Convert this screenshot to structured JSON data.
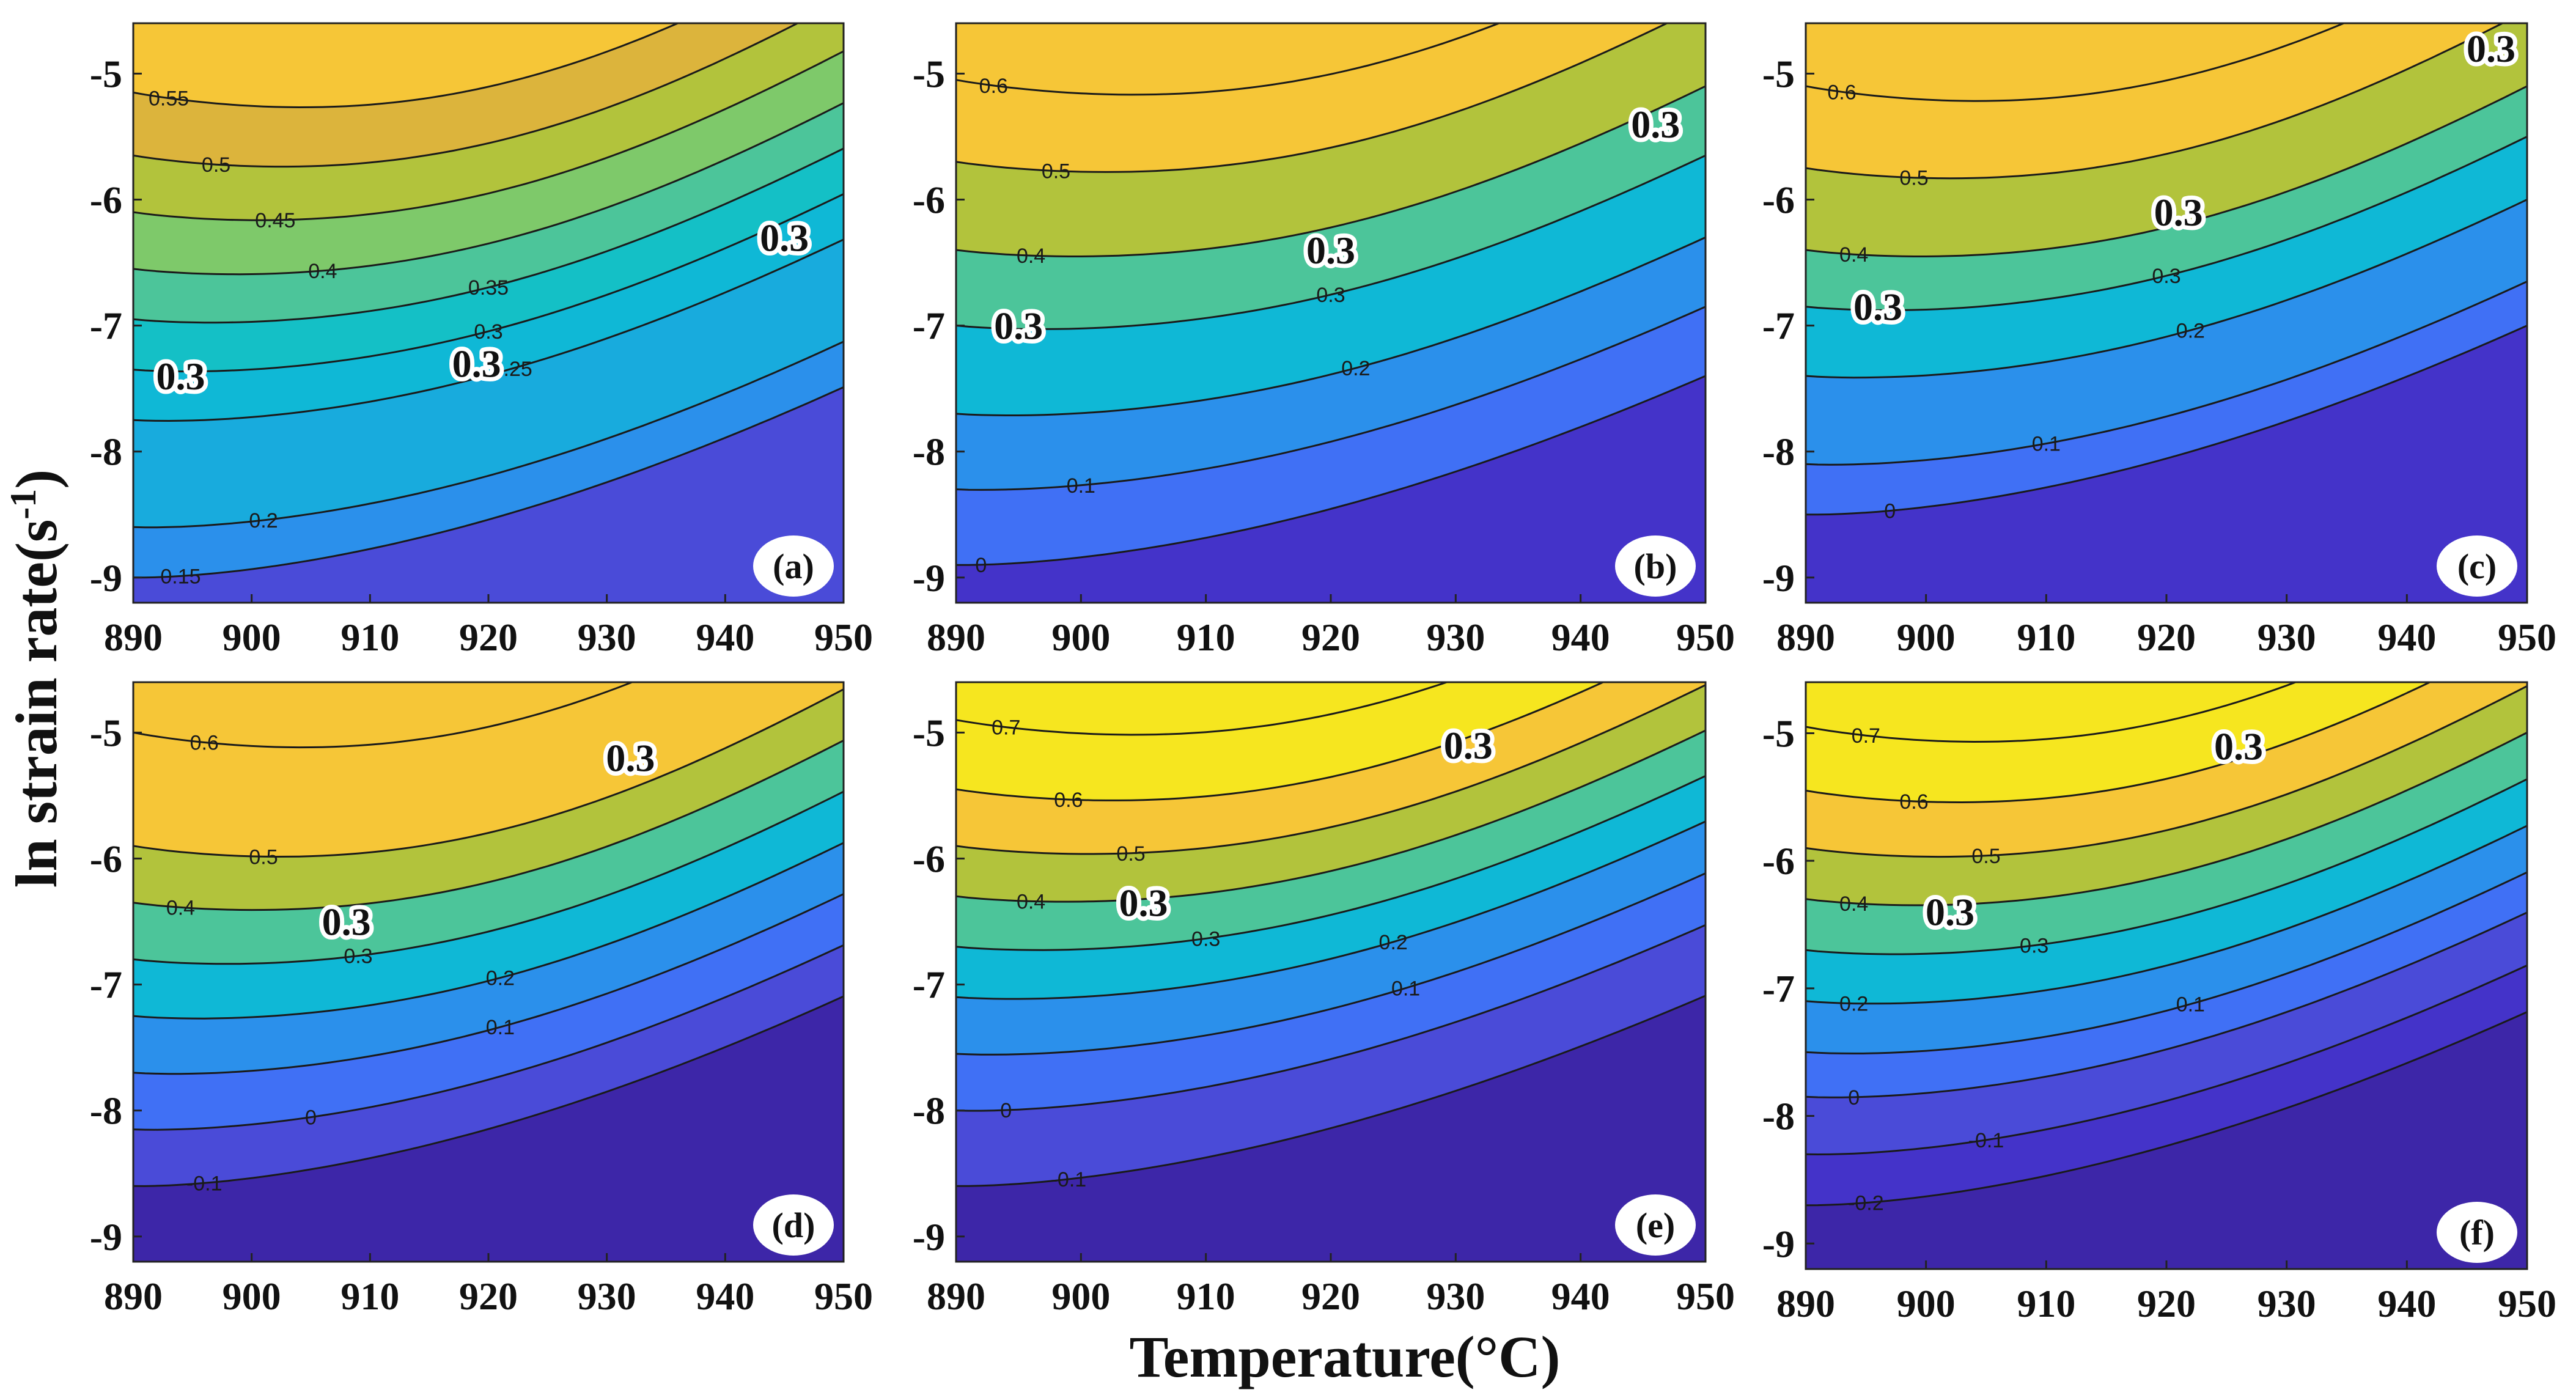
{
  "figure": {
    "ylabel": "ln strain rate(s",
    "ylabel_sup": "-1",
    "ylabel_close": ")",
    "xlabel": "Temperature(°C)"
  },
  "colors": {
    "levels": [
      -0.2,
      -0.1,
      0.0,
      0.1,
      0.2,
      0.25,
      0.3,
      0.35,
      0.4,
      0.45,
      0.5,
      0.55,
      0.6,
      0.7
    ],
    "fills": [
      "#3d26a8",
      "#4433c9",
      "#4a4bd8",
      "#4070f5",
      "#2b90eb",
      "#18abdd",
      "#0fb8d6",
      "#14c0c6",
      "#4cc59a",
      "#7ec96a",
      "#b2c33c",
      "#dcb43c",
      "#f6c637",
      "#f6e61f"
    ]
  },
  "chart_data": [
    {
      "type": "contour",
      "panel": "(a)",
      "xlim": [
        890,
        950
      ],
      "ylim": [
        -9.2,
        -4.6
      ],
      "xticks": [
        "890",
        "900",
        "910",
        "920",
        "930",
        "940",
        "950"
      ],
      "yticks": [
        "-5",
        "-6",
        "-7",
        "-8",
        "-9"
      ],
      "xlabel": "Temperature(°C)",
      "ylabel": "ln strain rate(s-1)",
      "contours": [
        {
          "level": 0.55,
          "y_start": -5.15,
          "slope": 0.0,
          "label": "0.55",
          "label_x": 893
        },
        {
          "level": 0.5,
          "y_start": -5.65,
          "slope": 0.0,
          "label": "0.5",
          "label_x": 897
        },
        {
          "level": 0.45,
          "y_start": -6.1,
          "slope": 0.0,
          "label": "0.45",
          "label_x": 902
        },
        {
          "level": 0.4,
          "y_start": -6.55,
          "slope": 0.0,
          "label": "0.4",
          "label_x": 906
        },
        {
          "level": 0.35,
          "y_start": -6.95,
          "slope": 0.0,
          "label": "0.35",
          "label_x": 920
        },
        {
          "level": 0.3,
          "y_start": -7.35,
          "slope": 0.0,
          "label": "0.3",
          "label_x": 920
        },
        {
          "level": 0.25,
          "y_start": -7.75,
          "slope": 0.0,
          "label": "0.25",
          "label_x": 922
        },
        {
          "level": 0.2,
          "y_start": -8.6,
          "slope": 0.0,
          "label": "0.2",
          "label_x": 901
        },
        {
          "level": 0.15,
          "y_start": -9.0,
          "slope": 0.0,
          "label": "0.15",
          "label_x": 894
        }
      ],
      "big_labels": [
        {
          "text": "0.3",
          "x": 894,
          "y": -7.4
        },
        {
          "text": "0.3",
          "x": 919,
          "y": -7.3
        },
        {
          "text": "0.3",
          "x": 945,
          "y": -6.3
        }
      ]
    },
    {
      "type": "contour",
      "panel": "(b)",
      "xlim": [
        890,
        950
      ],
      "ylim": [
        -9.2,
        -4.6
      ],
      "xticks": [
        "890",
        "900",
        "910",
        "920",
        "930",
        "940",
        "950"
      ],
      "yticks": [
        "-5",
        "-6",
        "-7",
        "-8",
        "-9"
      ],
      "xlabel": "Temperature(°C)",
      "ylabel": "ln strain rate(s-1)",
      "contours": [
        {
          "level": 0.6,
          "y_start": -5.05,
          "label": "0.6",
          "label_x": 893
        },
        {
          "level": 0.5,
          "y_start": -5.7,
          "label": "0.5",
          "label_x": 898
        },
        {
          "level": 0.4,
          "y_start": -6.4,
          "label": "0.4",
          "label_x": 896
        },
        {
          "level": 0.3,
          "y_start": -7.0,
          "label": "0.3",
          "label_x": 920
        },
        {
          "level": 0.2,
          "y_start": -7.7,
          "label": "0.2",
          "label_x": 922
        },
        {
          "level": 0.1,
          "y_start": -8.3,
          "label": "0.1",
          "label_x": 900
        },
        {
          "level": 0.0,
          "y_start": -8.9,
          "label": "0",
          "label_x": 892
        }
      ],
      "big_labels": [
        {
          "text": "0.3",
          "x": 895,
          "y": -7.0
        },
        {
          "text": "0.3",
          "x": 920,
          "y": -6.4
        },
        {
          "text": "0.3",
          "x": 946,
          "y": -5.4
        }
      ]
    },
    {
      "type": "contour",
      "panel": "(c)",
      "xlim": [
        890,
        950
      ],
      "ylim": [
        -9.2,
        -4.6
      ],
      "xticks": [
        "890",
        "900",
        "910",
        "920",
        "930",
        "940",
        "950"
      ],
      "yticks": [
        "-5",
        "-6",
        "-7",
        "-8",
        "-9"
      ],
      "xlabel": "Temperature(°C)",
      "ylabel": "ln strain rate(s-1)",
      "contours": [
        {
          "level": 0.6,
          "y_start": -5.1,
          "label": "0.6",
          "label_x": 893
        },
        {
          "level": 0.5,
          "y_start": -5.75,
          "label": "0.5",
          "label_x": 899
        },
        {
          "level": 0.4,
          "y_start": -6.4,
          "label": "0.4",
          "label_x": 894
        },
        {
          "level": 0.3,
          "y_start": -6.85,
          "label": "0.3",
          "label_x": 920
        },
        {
          "level": 0.2,
          "y_start": -7.4,
          "label": "0.2",
          "label_x": 922
        },
        {
          "level": 0.1,
          "y_start": -8.1,
          "label": "0.1",
          "label_x": 910
        },
        {
          "level": 0.0,
          "y_start": -8.5,
          "label": "0",
          "label_x": 897
        }
      ],
      "big_labels": [
        {
          "text": "0.3",
          "x": 896,
          "y": -6.85
        },
        {
          "text": "0.3",
          "x": 921,
          "y": -6.1
        },
        {
          "text": "0.3",
          "x": 947,
          "y": -4.8
        }
      ]
    },
    {
      "type": "contour",
      "panel": "(d)",
      "xlim": [
        890,
        950
      ],
      "ylim": [
        -9.2,
        -4.6
      ],
      "xticks": [
        "890",
        "900",
        "910",
        "920",
        "930",
        "940",
        "950"
      ],
      "yticks": [
        "-5",
        "-6",
        "-7",
        "-8",
        "-9"
      ],
      "xlabel": "Temperature(°C)",
      "ylabel": "ln strain rate(s-1)",
      "contours": [
        {
          "level": 0.6,
          "y_start": -5.0,
          "label": "0.6",
          "label_x": 896
        },
        {
          "level": 0.5,
          "y_start": -5.9,
          "label": "0.5",
          "label_x": 901
        },
        {
          "level": 0.4,
          "y_start": -6.35,
          "label": "0.4",
          "label_x": 894
        },
        {
          "level": 0.3,
          "y_start": -6.8,
          "label": "0.3",
          "label_x": 909
        },
        {
          "level": 0.2,
          "y_start": -7.25,
          "label": "0.2",
          "label_x": 921
        },
        {
          "level": 0.1,
          "y_start": -7.7,
          "label": "0.1",
          "label_x": 921
        },
        {
          "level": 0.0,
          "y_start": -8.15,
          "label": "0",
          "label_x": 905
        },
        {
          "level": -0.1,
          "y_start": -8.6,
          "label": "-0.1",
          "label_x": 896
        }
      ],
      "big_labels": [
        {
          "text": "0.3",
          "x": 908,
          "y": -6.5
        },
        {
          "text": "0.3",
          "x": 932,
          "y": -5.2
        }
      ]
    },
    {
      "type": "contour",
      "panel": "(e)",
      "xlim": [
        890,
        950
      ],
      "ylim": [
        -9.2,
        -4.6
      ],
      "xticks": [
        "890",
        "900",
        "910",
        "920",
        "930",
        "940",
        "950"
      ],
      "yticks": [
        "-5",
        "-6",
        "-7",
        "-8",
        "-9"
      ],
      "xlabel": "Temperature(°C)",
      "ylabel": "ln strain rate(s-1)",
      "contours": [
        {
          "level": 0.7,
          "y_start": -4.9,
          "label": "0.7",
          "label_x": 894
        },
        {
          "level": 0.6,
          "y_start": -5.45,
          "label": "0.6",
          "label_x": 899
        },
        {
          "level": 0.5,
          "y_start": -5.9,
          "label": "0.5",
          "label_x": 904
        },
        {
          "level": 0.4,
          "y_start": -6.3,
          "label": "0.4",
          "label_x": 896
        },
        {
          "level": 0.3,
          "y_start": -6.7,
          "label": "0.3",
          "label_x": 910
        },
        {
          "level": 0.2,
          "y_start": -7.1,
          "label": "0.2",
          "label_x": 925
        },
        {
          "level": 0.1,
          "y_start": -7.55,
          "label": "0.1",
          "label_x": 926
        },
        {
          "level": 0.0,
          "y_start": -8.0,
          "label": "0",
          "label_x": 894
        },
        {
          "level": -0.1,
          "y_start": -8.6,
          "label": "-0.1",
          "label_x": 899
        }
      ],
      "big_labels": [
        {
          "text": "0.3",
          "x": 905,
          "y": -6.35
        },
        {
          "text": "0.3",
          "x": 931,
          "y": -5.1
        }
      ]
    },
    {
      "type": "contour",
      "panel": "(f)",
      "xlim": [
        890,
        950
      ],
      "ylim": [
        -9.2,
        -4.6
      ],
      "xticks": [
        "890",
        "900",
        "910",
        "920",
        "930",
        "940",
        "950"
      ],
      "yticks": [
        "-5",
        "-6",
        "-7",
        "-8",
        "-9"
      ],
      "xlabel": "Temperature(°C)",
      "ylabel": "ln strain rate(s-1)",
      "contours": [
        {
          "level": 0.7,
          "y_start": -4.95,
          "label": "0.7",
          "label_x": 895
        },
        {
          "level": 0.6,
          "y_start": -5.45,
          "label": "0.6",
          "label_x": 899
        },
        {
          "level": 0.5,
          "y_start": -5.9,
          "label": "0.5",
          "label_x": 905
        },
        {
          "level": 0.4,
          "y_start": -6.3,
          "label": "0.4",
          "label_x": 894
        },
        {
          "level": 0.3,
          "y_start": -6.7,
          "label": "0.3",
          "label_x": 909
        },
        {
          "level": 0.2,
          "y_start": -7.1,
          "label": "0.2",
          "label_x": 894
        },
        {
          "level": 0.1,
          "y_start": -7.5,
          "label": "0.1",
          "label_x": 922
        },
        {
          "level": 0.0,
          "y_start": -7.85,
          "label": "0",
          "label_x": 894
        },
        {
          "level": -0.1,
          "y_start": -8.3,
          "label": "-0.1",
          "label_x": 905
        },
        {
          "level": -0.2,
          "y_start": -8.7,
          "label": "-0.2",
          "label_x": 895
        }
      ],
      "big_labels": [
        {
          "text": "0.3",
          "x": 902,
          "y": -6.4
        },
        {
          "text": "0.3",
          "x": 926,
          "y": -5.1
        }
      ]
    }
  ]
}
